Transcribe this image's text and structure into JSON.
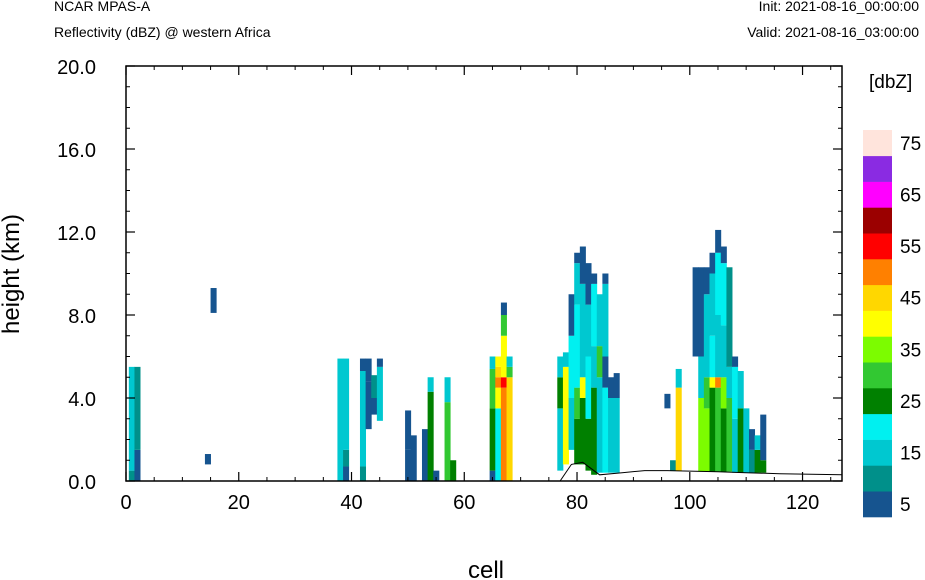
{
  "header": {
    "left_line1": "NCAR MPAS-A",
    "left_line2": "Reflectivity (dBZ) @ western Africa",
    "right_line1": "Init: 2021-08-16_00:00:00",
    "right_line2": "Valid: 2021-08-16_03:00:00"
  },
  "chart_data": {
    "type": "heatmap",
    "xlabel": "cell",
    "ylabel": "height (km)",
    "xlim": [
      0,
      127
    ],
    "ylim": [
      0,
      20
    ],
    "x_ticks": [
      "0",
      "20",
      "40",
      "60",
      "80",
      "100",
      "120"
    ],
    "y_ticks": [
      "0.0",
      "4.0",
      "8.0",
      "12.0",
      "16.0",
      "20.0"
    ],
    "colorbar": {
      "title": "[dbZ]",
      "labels": [
        "5",
        "15",
        "25",
        "35",
        "45",
        "55",
        "65",
        "75"
      ],
      "colors": [
        "#16548f",
        "#00908a",
        "#00c8d0",
        "#00f0f0",
        "#008000",
        "#32c832",
        "#7cfc00",
        "#ffff00",
        "#ffd700",
        "#ff8000",
        "#ff0000",
        "#9b0000",
        "#ff00ff",
        "#8a2be2",
        "#ffe4dc"
      ]
    },
    "terrain_km": [
      [
        0,
        0
      ],
      [
        77,
        0
      ],
      [
        79,
        0.8
      ],
      [
        81,
        0.9
      ],
      [
        84,
        0.3
      ],
      [
        88,
        0.4
      ],
      [
        92,
        0.5
      ],
      [
        96,
        0.5
      ],
      [
        105,
        0.45
      ],
      [
        110,
        0.4
      ],
      [
        116,
        0.35
      ],
      [
        127,
        0.3
      ]
    ],
    "columns": [
      {
        "x": 1,
        "segs": [
          [
            0,
            0.5,
            1
          ],
          [
            0.5,
            5.5,
            2
          ]
        ]
      },
      {
        "x": 2,
        "segs": [
          [
            0,
            1.5,
            0
          ],
          [
            1.5,
            5.5,
            1
          ]
        ]
      },
      {
        "x": 14.5,
        "segs": [
          [
            0.8,
            1.3,
            0
          ]
        ]
      },
      {
        "x": 15.5,
        "segs": [
          [
            8.1,
            9.3,
            0
          ]
        ]
      },
      {
        "x": 38,
        "segs": [
          [
            0,
            5.9,
            2
          ]
        ]
      },
      {
        "x": 39,
        "segs": [
          [
            0,
            0.7,
            0
          ],
          [
            0.7,
            1.5,
            1
          ],
          [
            1.5,
            5.9,
            2
          ]
        ]
      },
      {
        "x": 42,
        "segs": [
          [
            0,
            0.7,
            1
          ],
          [
            0.7,
            5.3,
            2
          ],
          [
            5.3,
            5.9,
            0
          ]
        ]
      },
      {
        "x": 43,
        "segs": [
          [
            2.5,
            4.8,
            0
          ],
          [
            4.8,
            5.9,
            0
          ]
        ]
      },
      {
        "x": 44,
        "segs": [
          [
            3.2,
            4.0,
            0
          ],
          [
            4.0,
            5.1,
            1
          ]
        ]
      },
      {
        "x": 45,
        "segs": [
          [
            2.9,
            5.5,
            2
          ],
          [
            5.5,
            5.9,
            0
          ]
        ]
      },
      {
        "x": 50,
        "segs": [
          [
            0,
            1.5,
            0
          ],
          [
            1.5,
            3.4,
            0
          ]
        ]
      },
      {
        "x": 51,
        "segs": [
          [
            0,
            2.2,
            0
          ]
        ]
      },
      {
        "x": 53,
        "segs": [
          [
            0,
            2.5,
            0
          ]
        ]
      },
      {
        "x": 54,
        "segs": [
          [
            0,
            4.3,
            4
          ],
          [
            4.3,
            5.0,
            2
          ]
        ]
      },
      {
        "x": 55,
        "segs": [
          [
            0,
            0.5,
            0
          ]
        ]
      },
      {
        "x": 57,
        "segs": [
          [
            0,
            3.8,
            5
          ],
          [
            3.8,
            5.0,
            2
          ]
        ]
      },
      {
        "x": 58,
        "segs": [
          [
            0,
            1.0,
            4
          ]
        ]
      },
      {
        "x": 65,
        "segs": [
          [
            0,
            0.5,
            0
          ],
          [
            0.5,
            3.5,
            4
          ],
          [
            3.5,
            5.4,
            5
          ],
          [
            5.4,
            6.0,
            2
          ]
        ]
      },
      {
        "x": 66,
        "segs": [
          [
            0,
            3.5,
            3
          ],
          [
            3.5,
            4.5,
            7
          ],
          [
            4.5,
            5.0,
            9
          ],
          [
            5.0,
            5.5,
            8
          ],
          [
            5.5,
            6.0,
            7
          ]
        ]
      },
      {
        "x": 67,
        "segs": [
          [
            0,
            4.5,
            9
          ],
          [
            4.5,
            5.0,
            10
          ],
          [
            5.0,
            7.0,
            7
          ],
          [
            7.0,
            8.0,
            5
          ],
          [
            8.0,
            8.6,
            0
          ]
        ]
      },
      {
        "x": 68,
        "segs": [
          [
            0,
            5.0,
            8
          ],
          [
            5.0,
            5.5,
            5
          ],
          [
            5.5,
            6.0,
            2
          ]
        ]
      },
      {
        "x": 77,
        "segs": [
          [
            0.5,
            3.5,
            2
          ],
          [
            3.5,
            5.0,
            4
          ],
          [
            5.0,
            6.0,
            2
          ]
        ]
      },
      {
        "x": 78,
        "segs": [
          [
            0.8,
            5.5,
            7
          ],
          [
            5.5,
            6.2,
            2
          ]
        ]
      },
      {
        "x": 79,
        "segs": [
          [
            1.5,
            4.0,
            2
          ],
          [
            4.0,
            7.0,
            3
          ],
          [
            7.0,
            9.0,
            0
          ]
        ]
      },
      {
        "x": 80,
        "segs": [
          [
            0.8,
            3.0,
            4
          ],
          [
            3.0,
            4.5,
            5
          ],
          [
            4.5,
            8.5,
            3
          ],
          [
            8.5,
            10.5,
            2
          ],
          [
            10.5,
            11.0,
            0
          ]
        ]
      },
      {
        "x": 81,
        "segs": [
          [
            0.8,
            4.0,
            4
          ],
          [
            4.0,
            5.0,
            7
          ],
          [
            5.0,
            9.5,
            2
          ],
          [
            9.5,
            11.3,
            0
          ]
        ]
      },
      {
        "x": 82,
        "segs": [
          [
            0.5,
            3.0,
            4
          ],
          [
            3.0,
            6.0,
            3
          ],
          [
            6.0,
            8.5,
            2
          ],
          [
            8.5,
            10.5,
            0
          ]
        ]
      },
      {
        "x": 83,
        "segs": [
          [
            0.3,
            4.5,
            4
          ],
          [
            4.5,
            6.5,
            2
          ],
          [
            6.5,
            9.5,
            3
          ],
          [
            9.5,
            10.0,
            0
          ]
        ]
      },
      {
        "x": 84,
        "segs": [
          [
            0.4,
            5.0,
            2
          ],
          [
            5.0,
            6.5,
            5
          ],
          [
            6.5,
            9.0,
            2
          ]
        ]
      },
      {
        "x": 85,
        "segs": [
          [
            0.4,
            4.5,
            3
          ],
          [
            4.5,
            6.0,
            0
          ],
          [
            6.0,
            9.5,
            2
          ],
          [
            9.5,
            10.0,
            0
          ]
        ]
      },
      {
        "x": 86,
        "segs": [
          [
            0.4,
            4.0,
            2
          ],
          [
            4.0,
            5.0,
            0
          ]
        ]
      },
      {
        "x": 87,
        "segs": [
          [
            0.4,
            4.0,
            2
          ],
          [
            4.0,
            5.2,
            0
          ]
        ]
      },
      {
        "x": 96,
        "segs": [
          [
            3.5,
            4.2,
            0
          ]
        ]
      },
      {
        "x": 97,
        "segs": [
          [
            0.5,
            1.0,
            1
          ]
        ]
      },
      {
        "x": 98,
        "segs": [
          [
            0.5,
            4.5,
            8
          ],
          [
            4.5,
            5.4,
            2
          ]
        ]
      },
      {
        "x": 101,
        "segs": [
          [
            6.0,
            10.3,
            0
          ]
        ]
      },
      {
        "x": 102,
        "segs": [
          [
            0.45,
            4.0,
            6
          ],
          [
            4.0,
            6.0,
            2
          ],
          [
            6.0,
            10.3,
            0
          ]
        ]
      },
      {
        "x": 103,
        "segs": [
          [
            0.45,
            3.5,
            6
          ],
          [
            3.5,
            5.0,
            5
          ],
          [
            5.0,
            9.0,
            2
          ],
          [
            9.0,
            10.3,
            0
          ]
        ]
      },
      {
        "x": 104,
        "segs": [
          [
            0.45,
            4.5,
            4
          ],
          [
            4.5,
            5.0,
            7
          ],
          [
            5.0,
            7.0,
            3
          ],
          [
            7.0,
            10.0,
            2
          ],
          [
            10.0,
            11.0,
            0
          ]
        ]
      },
      {
        "x": 105,
        "segs": [
          [
            0.45,
            4.5,
            5
          ],
          [
            4.5,
            5.0,
            9
          ],
          [
            5.0,
            8.0,
            2
          ],
          [
            8.0,
            11.0,
            3
          ],
          [
            11.0,
            12.1,
            0
          ]
        ]
      },
      {
        "x": 106,
        "segs": [
          [
            0.45,
            3.5,
            4
          ],
          [
            3.5,
            5.0,
            6
          ],
          [
            5.0,
            7.5,
            2
          ],
          [
            7.5,
            10.5,
            3
          ],
          [
            10.5,
            11.3,
            0
          ]
        ]
      },
      {
        "x": 107,
        "segs": [
          [
            0.45,
            4.0,
            5
          ],
          [
            4.0,
            5.5,
            2
          ],
          [
            5.5,
            10.3,
            1
          ]
        ]
      },
      {
        "x": 108,
        "segs": [
          [
            0.4,
            3.0,
            2
          ],
          [
            3.0,
            5.5,
            3
          ],
          [
            5.5,
            6.0,
            0
          ]
        ]
      },
      {
        "x": 109,
        "segs": [
          [
            0.4,
            3.5,
            4
          ],
          [
            3.5,
            5.3,
            2
          ]
        ]
      },
      {
        "x": 110,
        "segs": [
          [
            0.4,
            3.5,
            2
          ]
        ]
      },
      {
        "x": 111,
        "segs": [
          [
            0.4,
            1.5,
            1
          ],
          [
            1.5,
            2.5,
            0
          ]
        ]
      },
      {
        "x": 112,
        "segs": [
          [
            0.4,
            1.5,
            4
          ],
          [
            1.5,
            2.2,
            2
          ]
        ]
      },
      {
        "x": 113,
        "segs": [
          [
            0.4,
            1.0,
            4
          ],
          [
            1.0,
            3.2,
            0
          ]
        ]
      }
    ]
  }
}
